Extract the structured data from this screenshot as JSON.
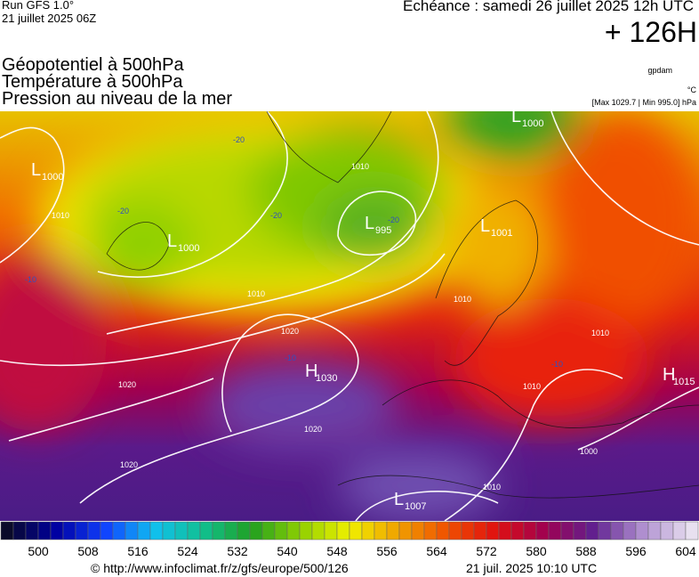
{
  "header": {
    "run": "Run GFS 1.0°",
    "run_date": "21 juillet 2025 06Z",
    "valid": "Echéance : samedi 26 juillet 2025 12h UTC",
    "lead": "+ 126H",
    "titles": [
      "Géopotentiel à 500hPa",
      "Température à 500hPa",
      "Pression au niveau de la mer"
    ],
    "units": [
      "gpdam",
      "°C",
      "[Max 1029.7 | Min 995.0] hPa"
    ]
  },
  "centers": [
    {
      "letter": "L",
      "value": "1000"
    },
    {
      "letter": "L",
      "value": "1000"
    },
    {
      "letter": "L",
      "value": "995"
    },
    {
      "letter": "L",
      "value": "1000"
    },
    {
      "letter": "L",
      "value": "1001"
    },
    {
      "letter": "H",
      "value": "1030"
    },
    {
      "letter": "H",
      "value": "1015"
    },
    {
      "letter": "L",
      "value": "1007"
    }
  ],
  "isobar_labels": [
    "1010",
    "1010",
    "1020",
    "1020",
    "1020",
    "1020",
    "1010",
    "1010",
    "1010",
    "1000",
    "1010",
    "1010"
  ],
  "temperature_labels": [
    "-20",
    "-20",
    "-20",
    "-20",
    "-10",
    "-10",
    "-10"
  ],
  "colorbar": {
    "ticks": [
      500,
      508,
      516,
      524,
      532,
      540,
      548,
      556,
      564,
      572,
      580,
      588,
      596,
      604
    ],
    "stops": [
      "#0a0a2a",
      "#0000a0",
      "#1040ff",
      "#10c0f0",
      "#10c090",
      "#20a020",
      "#90d000",
      "#f0f000",
      "#f0a000",
      "#f05000",
      "#e01010",
      "#a00050",
      "#602090",
      "#b090d0",
      "#e8e0f0"
    ]
  },
  "footer": {
    "url": "© http://www.infoclimat.fr/z/gfs/europe/500/126",
    "timestamp": "21 juil. 2025 10:10 UTC"
  }
}
